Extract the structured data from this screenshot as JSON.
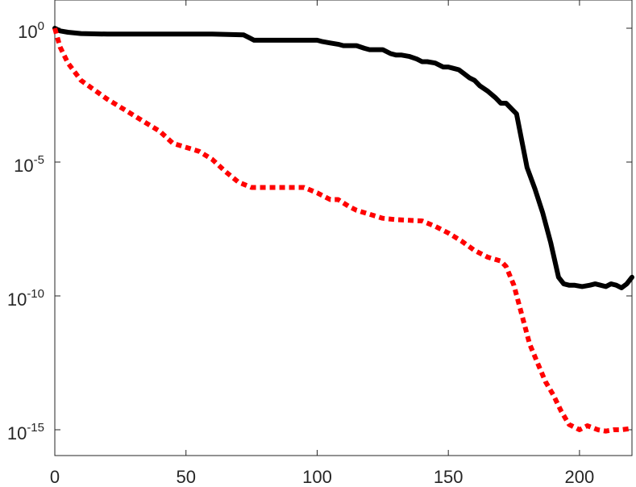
{
  "chart_data": {
    "type": "line",
    "title": "",
    "xlabel": "",
    "ylabel": "",
    "xlim": [
      0,
      220
    ],
    "ylim_log10": [
      -16,
      1
    ],
    "yscale": "log",
    "grid": false,
    "x_ticks": [
      {
        "label": "0",
        "value": 0
      },
      {
        "label": "50",
        "value": 50
      },
      {
        "label": "100",
        "value": 100
      },
      {
        "label": "150",
        "value": 150
      },
      {
        "label": "200",
        "value": 200
      }
    ],
    "y_ticks": [
      {
        "base": "10",
        "exp": "0",
        "log10": 0
      },
      {
        "base": "10",
        "exp": "-5",
        "log10": -5
      },
      {
        "base": "10",
        "exp": "-10",
        "log10": -10
      },
      {
        "base": "10",
        "exp": "-15",
        "log10": -15
      }
    ],
    "series": [
      {
        "color": "#000000",
        "style": "solid",
        "x": [
          0,
          2,
          5,
          10,
          20,
          40,
          60,
          72,
          74,
          76,
          90,
          100,
          102,
          105,
          108,
          110,
          112,
          115,
          118,
          120,
          122,
          125,
          128,
          130,
          132,
          135,
          138,
          140,
          142,
          145,
          148,
          150,
          152,
          154,
          156,
          158,
          160,
          162,
          165,
          168,
          170,
          172,
          174,
          176,
          178,
          180,
          183,
          186,
          189,
          192,
          194,
          196,
          198,
          201,
          204,
          206,
          208,
          210,
          212,
          214,
          216,
          218,
          220
        ],
        "y_log10": [
          0,
          -0.1,
          -0.15,
          -0.2,
          -0.22,
          -0.22,
          -0.22,
          -0.25,
          -0.35,
          -0.45,
          -0.45,
          -0.45,
          -0.5,
          -0.55,
          -0.6,
          -0.65,
          -0.65,
          -0.65,
          -0.75,
          -0.8,
          -0.8,
          -0.8,
          -0.95,
          -1.0,
          -1.0,
          -1.05,
          -1.15,
          -1.25,
          -1.25,
          -1.3,
          -1.45,
          -1.45,
          -1.5,
          -1.55,
          -1.7,
          -1.85,
          -1.95,
          -2.15,
          -2.35,
          -2.6,
          -2.8,
          -2.8,
          -3.0,
          -3.2,
          -4.2,
          -5.2,
          -6.0,
          -6.9,
          -8.0,
          -9.3,
          -9.55,
          -9.6,
          -9.6,
          -9.65,
          -9.6,
          -9.55,
          -9.6,
          -9.65,
          -9.55,
          -9.6,
          -9.7,
          -9.55,
          -9.3
        ]
      },
      {
        "color": "#ff0000",
        "style": "dotted",
        "x": [
          0,
          2,
          5,
          10,
          15,
          20,
          25,
          30,
          35,
          40,
          45,
          50,
          55,
          60,
          65,
          70,
          75,
          78,
          85,
          95,
          100,
          105,
          108,
          112,
          115,
          120,
          125,
          130,
          140,
          145,
          150,
          155,
          160,
          165,
          170,
          172,
          175,
          178,
          181,
          184,
          187,
          190,
          193,
          196,
          200,
          203,
          207,
          210,
          213,
          216,
          220
        ],
        "y_log10": [
          0,
          -0.7,
          -1.3,
          -1.95,
          -2.3,
          -2.65,
          -2.95,
          -3.25,
          -3.55,
          -3.85,
          -4.3,
          -4.45,
          -4.6,
          -4.9,
          -5.35,
          -5.75,
          -5.95,
          -5.95,
          -5.95,
          -5.95,
          -6.15,
          -6.4,
          -6.4,
          -6.65,
          -6.8,
          -6.95,
          -7.1,
          -7.15,
          -7.2,
          -7.4,
          -7.65,
          -7.95,
          -8.3,
          -8.55,
          -8.7,
          -8.9,
          -9.6,
          -10.7,
          -11.8,
          -12.5,
          -13.2,
          -13.7,
          -14.3,
          -14.8,
          -15.0,
          -14.85,
          -15.0,
          -15.05,
          -15.0,
          -15.0,
          -14.95
        ]
      }
    ]
  }
}
